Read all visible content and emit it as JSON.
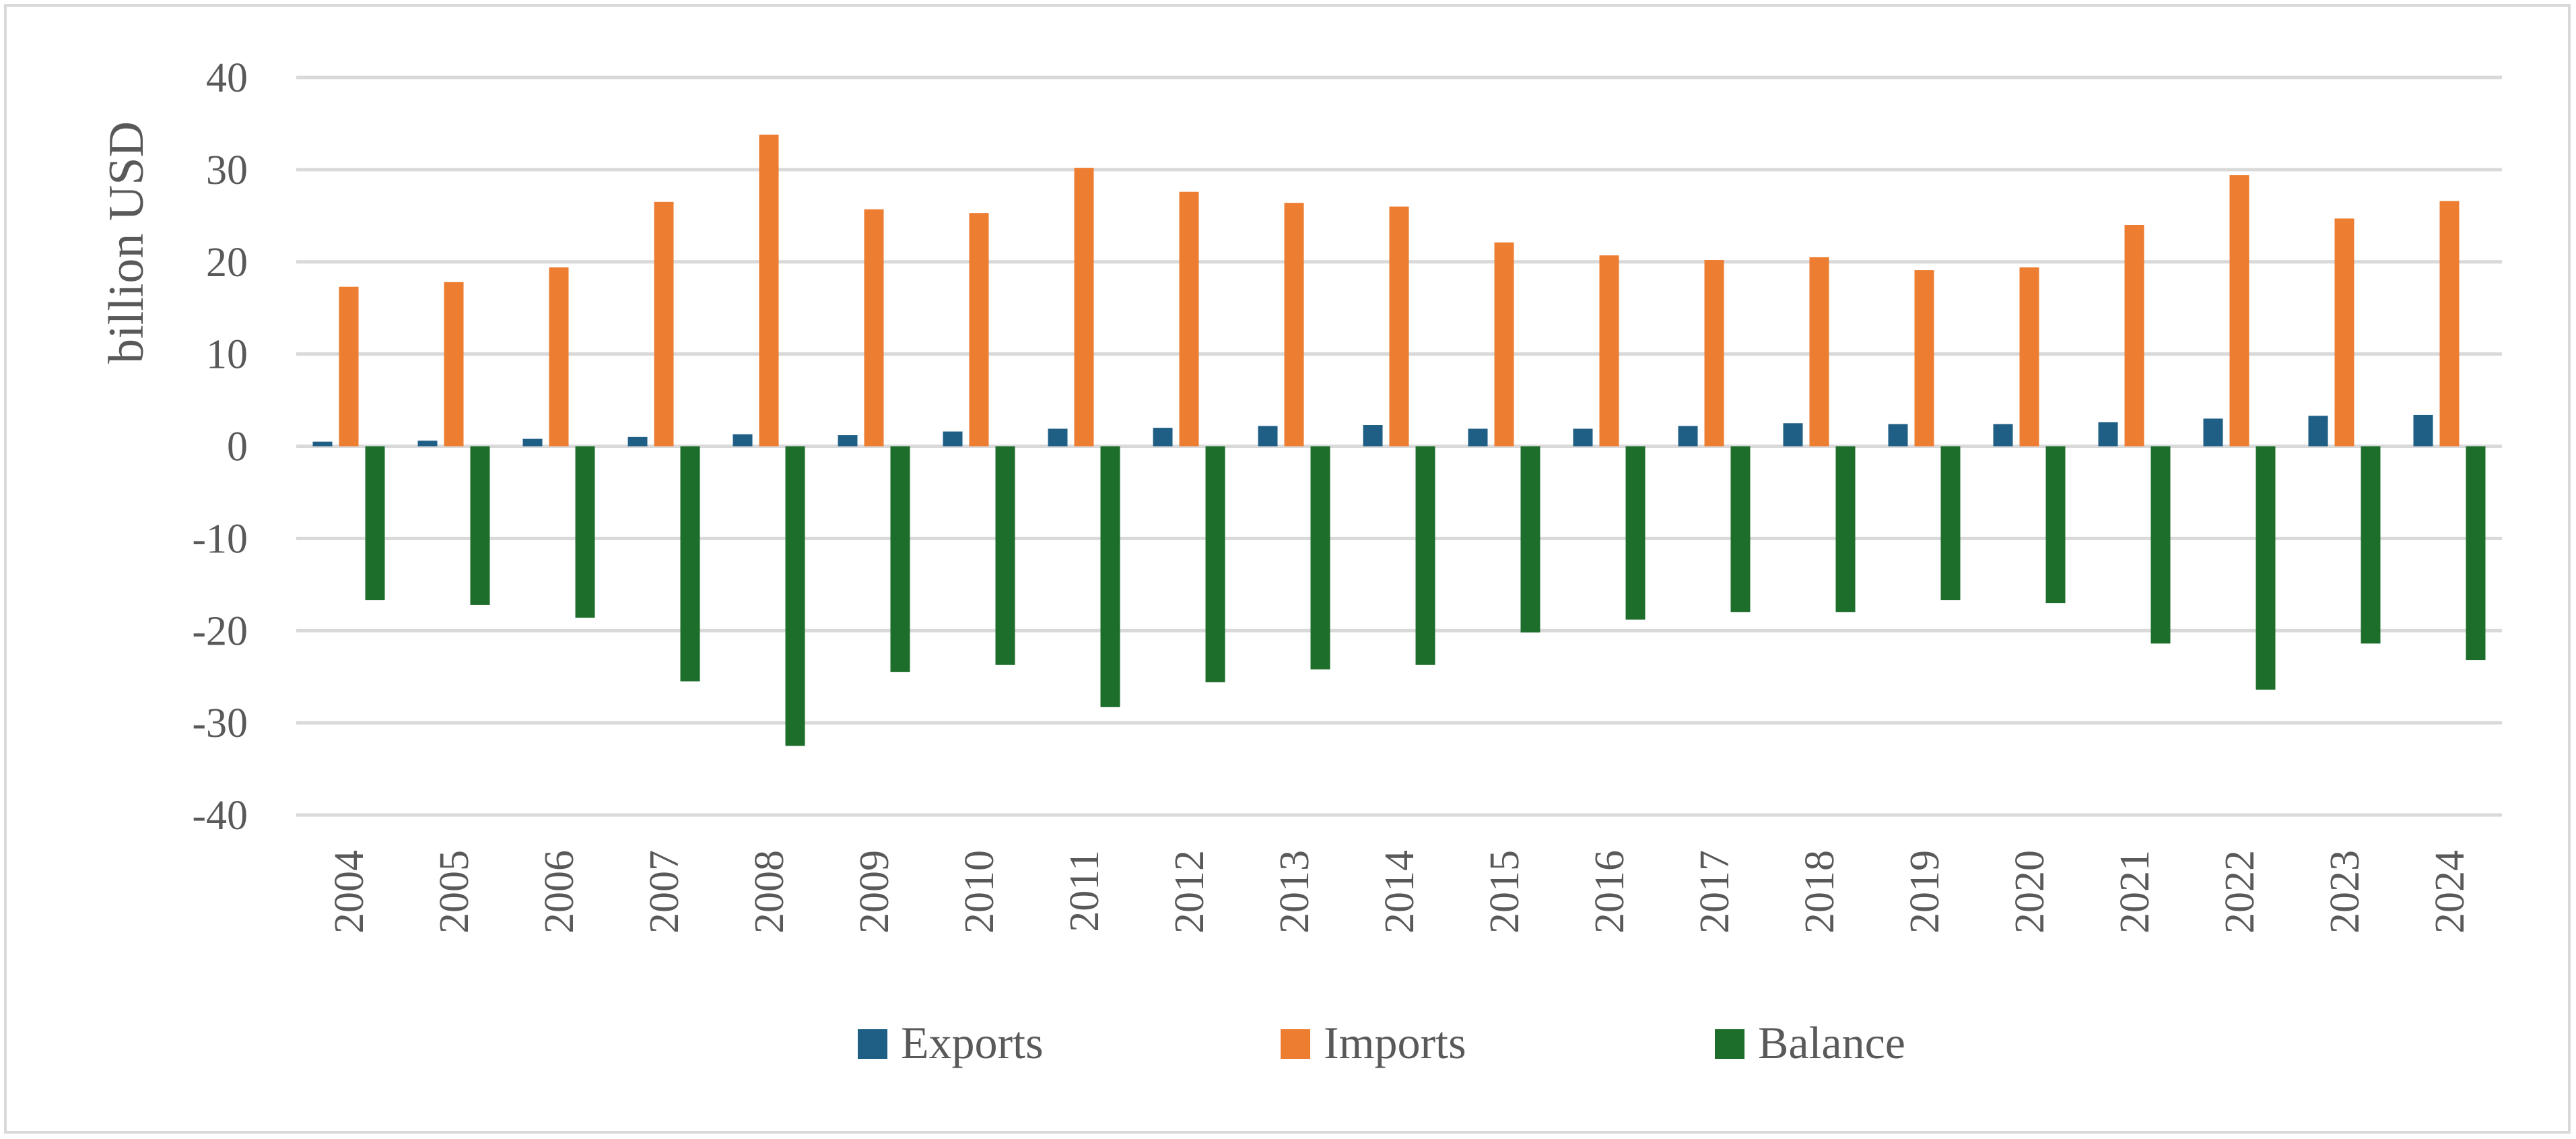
{
  "chart_data": {
    "type": "bar",
    "title": "",
    "xlabel": "",
    "ylabel": "billion USD",
    "ylim": [
      -40,
      40
    ],
    "yticks": [
      40,
      30,
      20,
      10,
      0,
      -10,
      -20,
      -30,
      -40
    ],
    "grid": true,
    "legend_position": "bottom",
    "categories": [
      "2004",
      "2005",
      "2006",
      "2007",
      "2008",
      "2009",
      "2010",
      "2011",
      "2012",
      "2013",
      "2014",
      "2015",
      "2016",
      "2017",
      "2018",
      "2019",
      "2020",
      "2021",
      "2022",
      "2023",
      "2024"
    ],
    "series": [
      {
        "name": "Exports",
        "color": "#1f5f86",
        "values": [
          0.5,
          0.6,
          0.8,
          1.0,
          1.3,
          1.2,
          1.6,
          1.9,
          2.0,
          2.2,
          2.3,
          1.9,
          1.9,
          2.2,
          2.5,
          2.4,
          2.4,
          2.6,
          3.0,
          3.3,
          3.4
        ]
      },
      {
        "name": "Imports",
        "color": "#ed7d31",
        "values": [
          17.3,
          17.8,
          19.4,
          26.5,
          33.8,
          25.7,
          25.3,
          30.2,
          27.6,
          26.4,
          26.0,
          22.1,
          20.7,
          20.2,
          20.5,
          19.1,
          19.4,
          24.0,
          29.4,
          24.7,
          26.6
        ]
      },
      {
        "name": "Balance",
        "color": "#1e6e2b",
        "values": [
          -16.7,
          -17.2,
          -18.6,
          -25.5,
          -32.5,
          -24.5,
          -23.7,
          -28.3,
          -25.6,
          -24.2,
          -23.7,
          -20.2,
          -18.8,
          -18.0,
          -18.0,
          -16.7,
          -17.0,
          -21.4,
          -26.4,
          -21.4,
          -23.2
        ]
      }
    ]
  }
}
